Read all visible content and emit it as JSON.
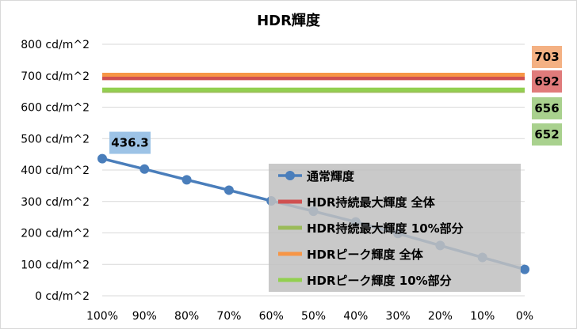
{
  "chart_data": {
    "type": "line",
    "title": "HDR輝度",
    "categories": [
      "100%",
      "90%",
      "80%",
      "70%",
      "60%",
      "50%",
      "40%",
      "30%",
      "20%",
      "10%",
      "0%"
    ],
    "y_ticks": [
      "0 cd/m^2",
      "100 cd/m^2",
      "200 cd/m^2",
      "300 cd/m^2",
      "400 cd/m^2",
      "500 cd/m^2",
      "600 cd/m^2",
      "700 cd/m^2",
      "800 cd/m^2"
    ],
    "ylim": [
      0,
      800
    ],
    "grid": true,
    "legend_position": "bottom-right",
    "series": [
      {
        "name": "通常輝度",
        "color": "#4a7ebb",
        "marker": true,
        "values": [
          436.3,
          403,
          369,
          336,
          302,
          269,
          235,
          198,
          160,
          122,
          84
        ]
      },
      {
        "name": "HDR持続最大輝度 全体",
        "color": "#d05050",
        "marker": false,
        "values": [
          692,
          692,
          692,
          692,
          692,
          692,
          692,
          692,
          692,
          692,
          692
        ]
      },
      {
        "name": "HDR持続最大輝度 10%部分",
        "color": "#9bbb59",
        "marker": false,
        "values": [
          652,
          652,
          652,
          652,
          652,
          652,
          652,
          652,
          652,
          652,
          652
        ]
      },
      {
        "name": "HDRピーク輝度 全体",
        "color": "#f79646",
        "marker": false,
        "values": [
          703,
          703,
          703,
          703,
          703,
          703,
          703,
          703,
          703,
          703,
          703
        ]
      },
      {
        "name": "HDRピーク輝度 10%部分",
        "color": "#92d050",
        "marker": false,
        "values": [
          656,
          656,
          656,
          656,
          656,
          656,
          656,
          656,
          656,
          656,
          656
        ]
      }
    ],
    "data_labels": [
      {
        "series": 0,
        "index": 0,
        "text": "436.3",
        "bg": "#9dc3e6"
      },
      {
        "series": 3,
        "index": 10,
        "text": "703",
        "bg": "#f4b183"
      },
      {
        "series": 1,
        "index": 10,
        "text": "692",
        "bg": "#e07b7b"
      },
      {
        "series": 4,
        "index": 10,
        "text": "656",
        "bg": "#a9d18e"
      },
      {
        "series": 2,
        "index": 10,
        "text": "652",
        "bg": "#a9d18e"
      }
    ],
    "legend_bg": "#c0c0c0"
  }
}
